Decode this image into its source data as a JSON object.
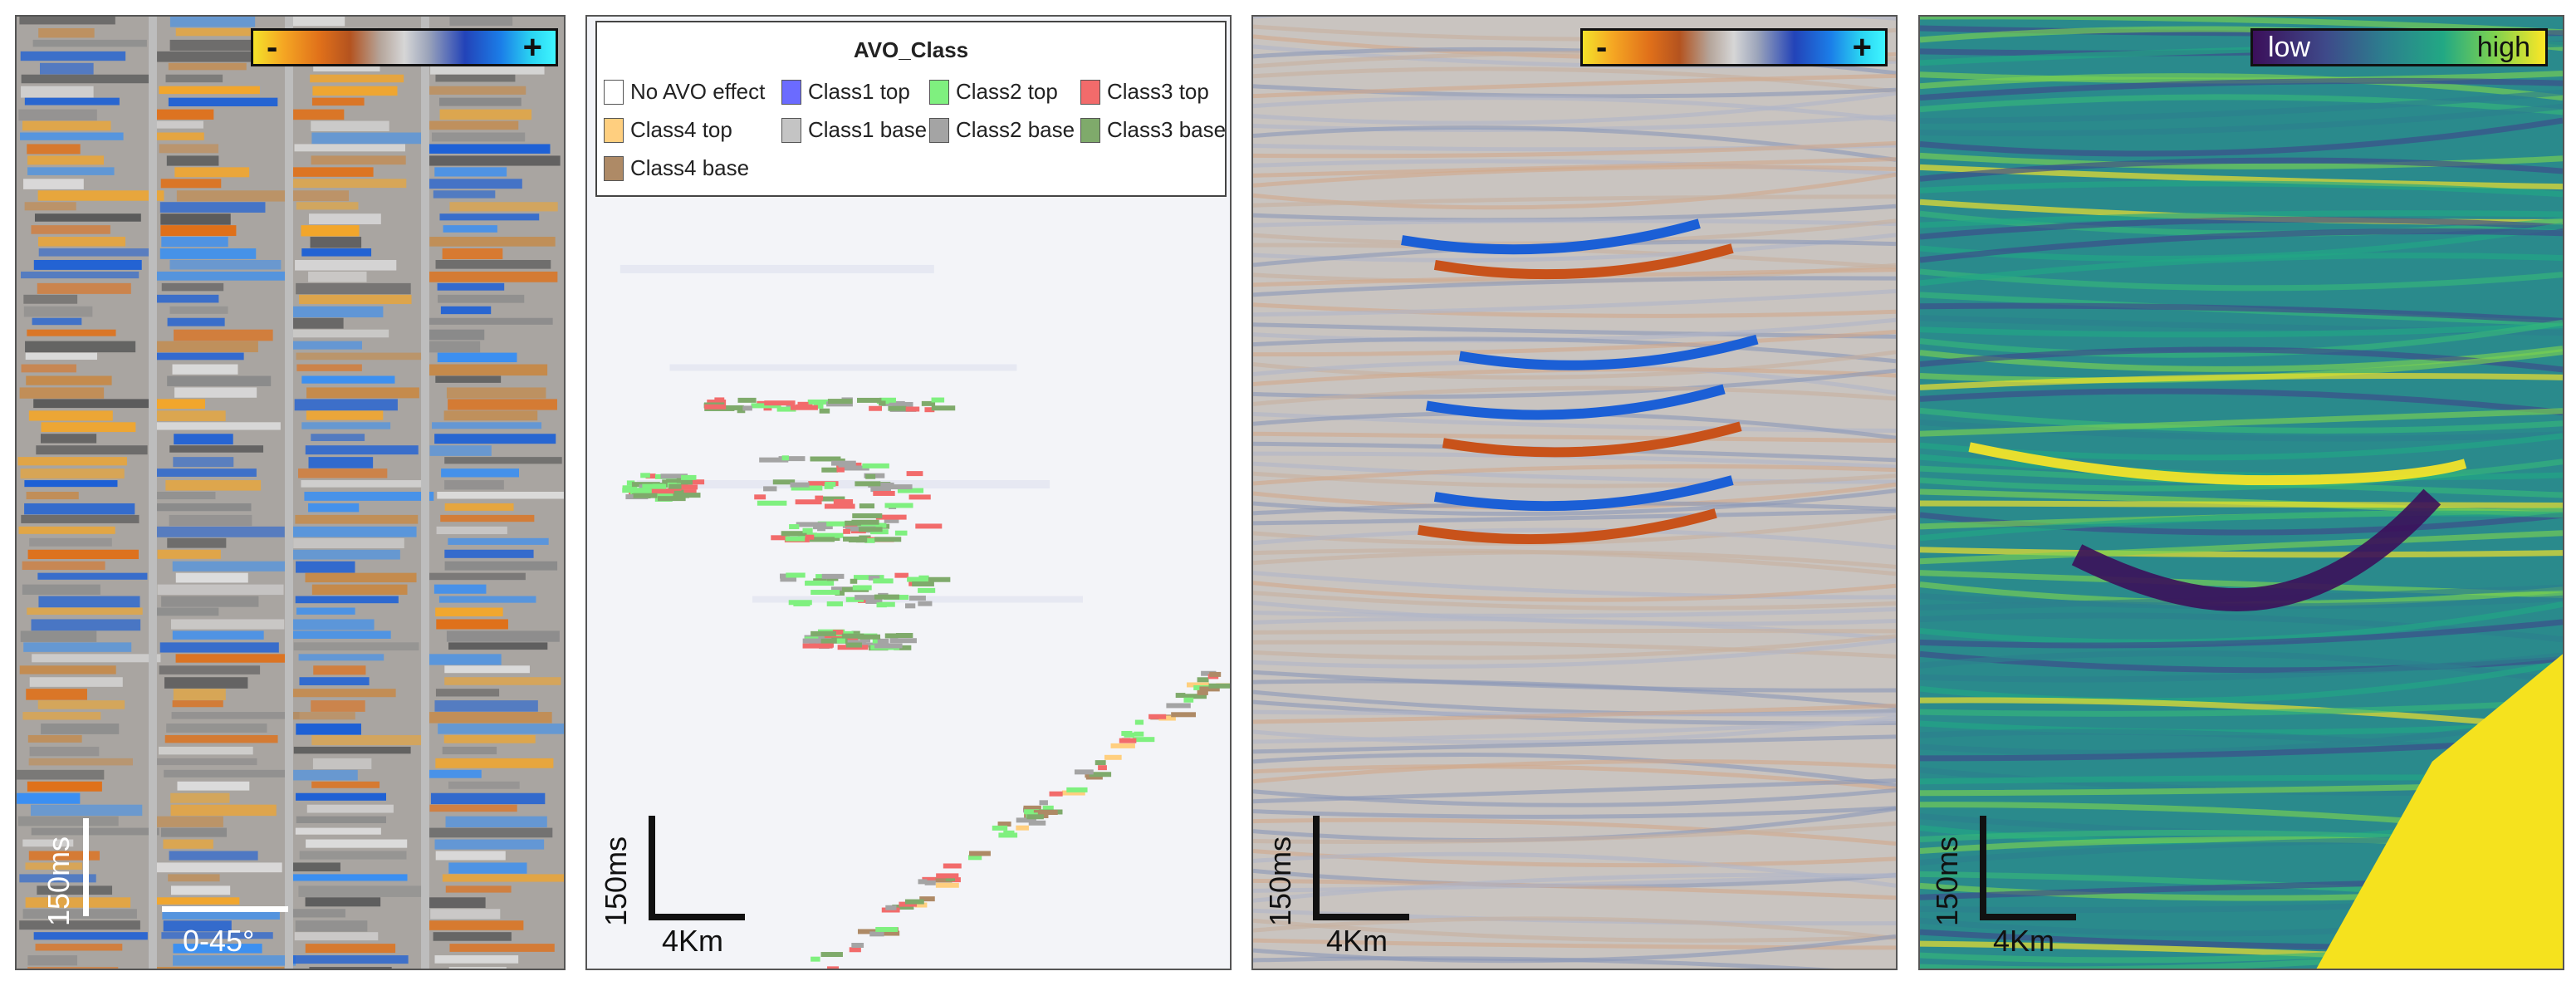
{
  "panel1": {
    "colorbar": {
      "minus": "-",
      "plus": "+"
    },
    "scale": {
      "time": "150ms",
      "angle": "0-45°"
    }
  },
  "panel2": {
    "legend": {
      "title": "AVO_Class",
      "items": [
        {
          "label": "No AVO effect",
          "color": "#ffffff"
        },
        {
          "label": "Class1 top",
          "color": "#6b6bff"
        },
        {
          "label": "Class2 top",
          "color": "#7ff07f"
        },
        {
          "label": "Class3 top",
          "color": "#f26b6b"
        },
        {
          "label": "Class4 top",
          "color": "#ffcf7f"
        },
        {
          "label": "Class1 base",
          "color": "#c4c4c4"
        },
        {
          "label": "Class2 base",
          "color": "#a4a4a4"
        },
        {
          "label": "Class3 base",
          "color": "#7faa6b"
        },
        {
          "label": "Class4 base",
          "color": "#ae8a66"
        }
      ]
    },
    "scale": {
      "time": "150ms",
      "distance": "4Km"
    }
  },
  "panel3": {
    "colorbar": {
      "minus": "-",
      "plus": "+"
    },
    "scale": {
      "time": "150ms",
      "distance": "4Km"
    }
  },
  "panel4": {
    "colorbar": {
      "low": "low",
      "high": "high"
    },
    "scale": {
      "time": "150ms",
      "distance": "4Km"
    }
  }
}
